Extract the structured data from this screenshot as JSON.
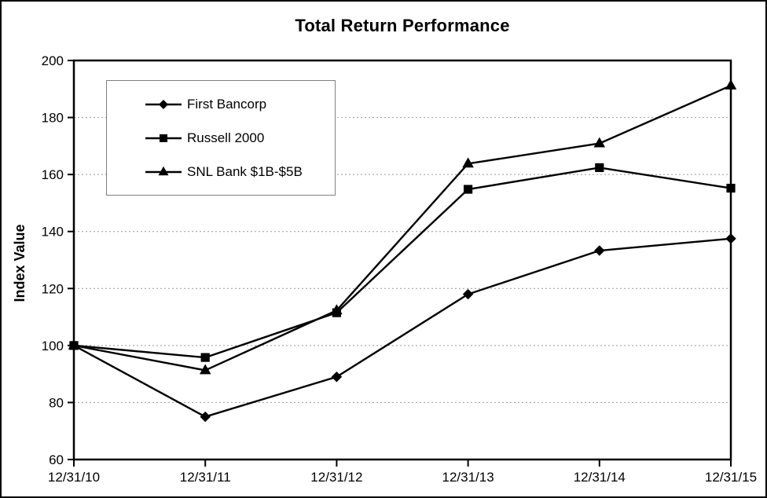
{
  "chart_data": {
    "type": "line",
    "title": "Total Return Performance",
    "ylabel": "Index Value",
    "xlabel": "",
    "categories": [
      "12/31/10",
      "12/31/11",
      "12/31/12",
      "12/31/13",
      "12/31/14",
      "12/31/15"
    ],
    "series": [
      {
        "name": "First Bancorp",
        "marker": "diamond",
        "values": [
          100,
          75,
          89,
          118,
          133.3,
          137.5
        ]
      },
      {
        "name": "Russell 2000",
        "marker": "square",
        "values": [
          100,
          95.8,
          111.5,
          154.8,
          162.4,
          155.2
        ]
      },
      {
        "name": "SNL Bank $1B-$5B",
        "marker": "triangle",
        "values": [
          100,
          91.3,
          112.3,
          163.8,
          170.9,
          191.2
        ]
      }
    ],
    "ylim": [
      60,
      200
    ],
    "yticks": [
      60,
      80,
      100,
      120,
      140,
      160,
      180,
      200
    ],
    "grid": "horizontal-dotted",
    "legend_position": "top-left-inside",
    "line_color": "#000000",
    "grid_color": "#999999",
    "legend_border_color": "#808080",
    "background_color": "#ffffff"
  }
}
